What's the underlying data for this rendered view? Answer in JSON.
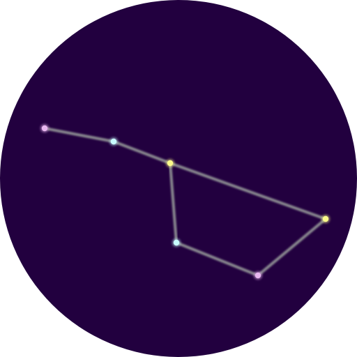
{
  "colors": {
    "sky": "#22003f",
    "line": "#8a8a90",
    "pink": "#e8b6f0",
    "cyan": "#c8fbff",
    "yellow": "#fafa8a"
  },
  "constellation": {
    "stars": [
      {
        "id": "star-1",
        "color": "pink"
      },
      {
        "id": "star-2",
        "color": "cyan"
      },
      {
        "id": "star-3",
        "color": "yellow"
      },
      {
        "id": "star-4",
        "color": "yellow"
      },
      {
        "id": "star-5",
        "color": "pink"
      },
      {
        "id": "star-6",
        "color": "cyan"
      }
    ],
    "links": [
      [
        "star-1",
        "star-2"
      ],
      [
        "star-2",
        "star-3"
      ],
      [
        "star-3",
        "star-4"
      ],
      [
        "star-4",
        "star-5"
      ],
      [
        "star-5",
        "star-6"
      ],
      [
        "star-6",
        "star-3"
      ]
    ]
  }
}
